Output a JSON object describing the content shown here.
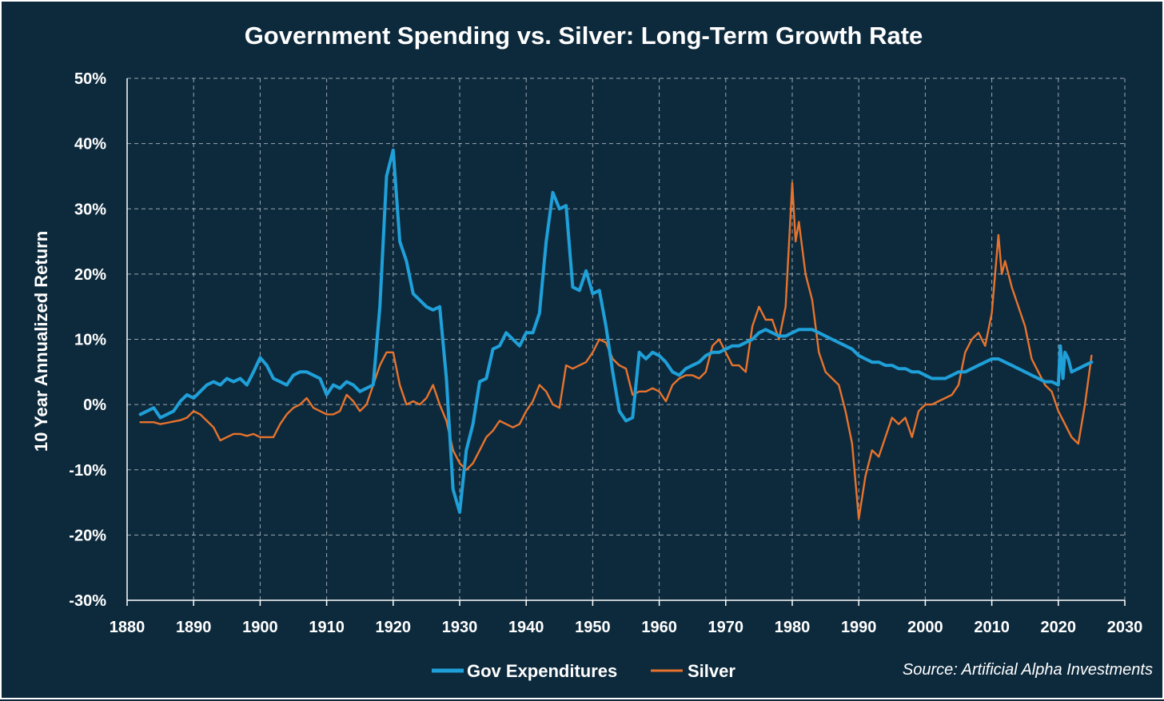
{
  "chart_data": {
    "type": "line",
    "title": "Government Spending vs. Silver: Long-Term Growth Rate",
    "ylabel": "10 Year Annualized Return",
    "xlabel": "",
    "xlim": [
      1880,
      2030
    ],
    "ylim": [
      -30,
      50
    ],
    "x_ticks": [
      1880,
      1890,
      1900,
      1910,
      1920,
      1930,
      1940,
      1950,
      1960,
      1970,
      1980,
      1990,
      2000,
      2010,
      2020,
      2030
    ],
    "x_tick_labels": [
      "1880",
      "1890",
      "1900",
      "1910",
      "1920",
      "1930",
      "1940",
      "1950",
      "1960",
      "1970",
      "1980",
      "1990",
      "2000",
      "2010",
      "2020",
      "2030"
    ],
    "y_ticks": [
      -30,
      -20,
      -10,
      0,
      10,
      20,
      30,
      40,
      50
    ],
    "y_tick_labels": [
      "-30%",
      "-20%",
      "-10%",
      "0%",
      "10%",
      "20%",
      "30%",
      "40%",
      "50%"
    ],
    "grid": true,
    "legend_position": "bottom",
    "source": "Source: Artificial Alpha Investments",
    "series": [
      {
        "name": "Gov Expenditures",
        "color": "#1fa0d9",
        "points": [
          [
            1882,
            -1.5
          ],
          [
            1883,
            -1
          ],
          [
            1884,
            -0.5
          ],
          [
            1885,
            -2
          ],
          [
            1886,
            -1.5
          ],
          [
            1887,
            -1
          ],
          [
            1888,
            0.5
          ],
          [
            1889,
            1.5
          ],
          [
            1890,
            1
          ],
          [
            1891,
            2
          ],
          [
            1892,
            3
          ],
          [
            1893,
            3.5
          ],
          [
            1894,
            3
          ],
          [
            1895,
            4
          ],
          [
            1896,
            3.5
          ],
          [
            1897,
            4
          ],
          [
            1898,
            3
          ],
          [
            1899,
            5
          ],
          [
            1900,
            7.2
          ],
          [
            1901,
            6
          ],
          [
            1902,
            4
          ],
          [
            1903,
            3.5
          ],
          [
            1904,
            3
          ],
          [
            1905,
            4.5
          ],
          [
            1906,
            5
          ],
          [
            1907,
            5
          ],
          [
            1908,
            4.5
          ],
          [
            1909,
            4
          ],
          [
            1910,
            1.5
          ],
          [
            1911,
            3
          ],
          [
            1912,
            2.5
          ],
          [
            1913,
            3.5
          ],
          [
            1914,
            3
          ],
          [
            1915,
            2
          ],
          [
            1916,
            2.5
          ],
          [
            1917,
            3
          ],
          [
            1918,
            15
          ],
          [
            1919,
            35
          ],
          [
            1920,
            39
          ],
          [
            1921,
            25
          ],
          [
            1922,
            22
          ],
          [
            1923,
            17
          ],
          [
            1924,
            16
          ],
          [
            1925,
            15
          ],
          [
            1926,
            14.5
          ],
          [
            1927,
            15
          ],
          [
            1928,
            4
          ],
          [
            1929,
            -13
          ],
          [
            1930,
            -16.5
          ],
          [
            1931,
            -7
          ],
          [
            1932,
            -3
          ],
          [
            1933,
            3.5
          ],
          [
            1934,
            4
          ],
          [
            1935,
            8.5
          ],
          [
            1936,
            9
          ],
          [
            1937,
            11
          ],
          [
            1938,
            10
          ],
          [
            1939,
            9
          ],
          [
            1940,
            11
          ],
          [
            1941,
            11
          ],
          [
            1942,
            14
          ],
          [
            1943,
            25
          ],
          [
            1944,
            32.5
          ],
          [
            1945,
            30
          ],
          [
            1946,
            30.5
          ],
          [
            1947,
            18
          ],
          [
            1948,
            17.5
          ],
          [
            1949,
            20.5
          ],
          [
            1950,
            17
          ],
          [
            1951,
            17.5
          ],
          [
            1952,
            12
          ],
          [
            1953,
            5
          ],
          [
            1954,
            -1
          ],
          [
            1955,
            -2.5
          ],
          [
            1956,
            -2
          ],
          [
            1957,
            8
          ],
          [
            1958,
            7
          ],
          [
            1959,
            8
          ],
          [
            1960,
            7.5
          ],
          [
            1961,
            6.5
          ],
          [
            1962,
            5
          ],
          [
            1963,
            4.5
          ],
          [
            1964,
            5.5
          ],
          [
            1965,
            6
          ],
          [
            1966,
            6.5
          ],
          [
            1967,
            7.5
          ],
          [
            1968,
            8
          ],
          [
            1969,
            8
          ],
          [
            1970,
            8.5
          ],
          [
            1971,
            9
          ],
          [
            1972,
            9
          ],
          [
            1973,
            9.5
          ],
          [
            1974,
            10
          ],
          [
            1975,
            11
          ],
          [
            1976,
            11.5
          ],
          [
            1977,
            11
          ],
          [
            1978,
            10.5
          ],
          [
            1979,
            10.5
          ],
          [
            1980,
            11
          ],
          [
            1981,
            11.5
          ],
          [
            1982,
            11.5
          ],
          [
            1983,
            11.5
          ],
          [
            1984,
            11
          ],
          [
            1985,
            10.5
          ],
          [
            1986,
            10
          ],
          [
            1987,
            9.5
          ],
          [
            1988,
            9
          ],
          [
            1989,
            8.5
          ],
          [
            1990,
            7.5
          ],
          [
            1991,
            7
          ],
          [
            1992,
            6.5
          ],
          [
            1993,
            6.5
          ],
          [
            1994,
            6
          ],
          [
            1995,
            6
          ],
          [
            1996,
            5.5
          ],
          [
            1997,
            5.5
          ],
          [
            1998,
            5
          ],
          [
            1999,
            5
          ],
          [
            2000,
            4.5
          ],
          [
            2001,
            4
          ],
          [
            2002,
            4
          ],
          [
            2003,
            4
          ],
          [
            2004,
            4.5
          ],
          [
            2005,
            5
          ],
          [
            2006,
            5
          ],
          [
            2007,
            5.5
          ],
          [
            2008,
            6
          ],
          [
            2009,
            6.5
          ],
          [
            2010,
            7
          ],
          [
            2011,
            7
          ],
          [
            2012,
            6.5
          ],
          [
            2013,
            6
          ],
          [
            2014,
            5.5
          ],
          [
            2015,
            5
          ],
          [
            2016,
            4.5
          ],
          [
            2017,
            4
          ],
          [
            2018,
            3.5
          ],
          [
            2019,
            3.5
          ],
          [
            2020,
            3
          ],
          [
            2020.3,
            9
          ],
          [
            2020.7,
            4
          ],
          [
            2021,
            8
          ],
          [
            2021.5,
            7
          ],
          [
            2022,
            5
          ],
          [
            2023,
            5.5
          ],
          [
            2024,
            6
          ],
          [
            2025,
            6.5
          ]
        ]
      },
      {
        "name": "Silver",
        "color": "#e8732c",
        "points": [
          [
            1882,
            -2.7
          ],
          [
            1883,
            -2.7
          ],
          [
            1884,
            -2.7
          ],
          [
            1885,
            -3
          ],
          [
            1886,
            -2.8
          ],
          [
            1887,
            -2.6
          ],
          [
            1888,
            -2.4
          ],
          [
            1889,
            -2
          ],
          [
            1890,
            -1
          ],
          [
            1891,
            -1.5
          ],
          [
            1892,
            -2.5
          ],
          [
            1893,
            -3.5
          ],
          [
            1894,
            -5.5
          ],
          [
            1895,
            -5
          ],
          [
            1896,
            -4.5
          ],
          [
            1897,
            -4.5
          ],
          [
            1898,
            -4.8
          ],
          [
            1899,
            -4.5
          ],
          [
            1900,
            -5
          ],
          [
            1901,
            -5
          ],
          [
            1902,
            -5
          ],
          [
            1903,
            -3
          ],
          [
            1904,
            -1.5
          ],
          [
            1905,
            -0.5
          ],
          [
            1906,
            0
          ],
          [
            1907,
            1
          ],
          [
            1908,
            -0.5
          ],
          [
            1909,
            -1
          ],
          [
            1910,
            -1.5
          ],
          [
            1911,
            -1.5
          ],
          [
            1912,
            -1
          ],
          [
            1913,
            1.5
          ],
          [
            1914,
            0.5
          ],
          [
            1915,
            -1
          ],
          [
            1916,
            0
          ],
          [
            1917,
            3
          ],
          [
            1918,
            6
          ],
          [
            1919,
            8
          ],
          [
            1920,
            8
          ],
          [
            1921,
            3
          ],
          [
            1922,
            0
          ],
          [
            1923,
            0.5
          ],
          [
            1924,
            0
          ],
          [
            1925,
            1
          ],
          [
            1926,
            3
          ],
          [
            1927,
            0
          ],
          [
            1928,
            -2.5
          ],
          [
            1929,
            -7
          ],
          [
            1930,
            -9
          ],
          [
            1931,
            -10
          ],
          [
            1932,
            -9
          ],
          [
            1933,
            -7
          ],
          [
            1934,
            -5
          ],
          [
            1935,
            -4
          ],
          [
            1936,
            -2.5
          ],
          [
            1937,
            -3
          ],
          [
            1938,
            -3.5
          ],
          [
            1939,
            -3
          ],
          [
            1940,
            -1
          ],
          [
            1941,
            0.5
          ],
          [
            1942,
            3
          ],
          [
            1943,
            2
          ],
          [
            1944,
            0
          ],
          [
            1945,
            -0.5
          ],
          [
            1946,
            6
          ],
          [
            1947,
            5.5
          ],
          [
            1948,
            6
          ],
          [
            1949,
            6.5
          ],
          [
            1950,
            8
          ],
          [
            1951,
            10
          ],
          [
            1952,
            9.5
          ],
          [
            1953,
            7
          ],
          [
            1954,
            6
          ],
          [
            1955,
            5.5
          ],
          [
            1956,
            1.5
          ],
          [
            1957,
            2
          ],
          [
            1958,
            2
          ],
          [
            1959,
            2.5
          ],
          [
            1960,
            2
          ],
          [
            1961,
            0.5
          ],
          [
            1962,
            3
          ],
          [
            1963,
            4
          ],
          [
            1964,
            4.5
          ],
          [
            1965,
            4.5
          ],
          [
            1966,
            4
          ],
          [
            1967,
            5
          ],
          [
            1968,
            9
          ],
          [
            1969,
            10
          ],
          [
            1970,
            8
          ],
          [
            1971,
            6
          ],
          [
            1972,
            6
          ],
          [
            1973,
            5
          ],
          [
            1974,
            12
          ],
          [
            1975,
            15
          ],
          [
            1976,
            13
          ],
          [
            1977,
            13
          ],
          [
            1978,
            10
          ],
          [
            1979,
            15
          ],
          [
            1980,
            34
          ],
          [
            1980.5,
            25
          ],
          [
            1981,
            28
          ],
          [
            1982,
            20
          ],
          [
            1983,
            16
          ],
          [
            1984,
            8
          ],
          [
            1985,
            5
          ],
          [
            1986,
            4
          ],
          [
            1987,
            3
          ],
          [
            1988,
            -1
          ],
          [
            1989,
            -6
          ],
          [
            1990,
            -17.5
          ],
          [
            1991,
            -11
          ],
          [
            1992,
            -7
          ],
          [
            1993,
            -8
          ],
          [
            1994,
            -5
          ],
          [
            1995,
            -2
          ],
          [
            1996,
            -3
          ],
          [
            1997,
            -2
          ],
          [
            1998,
            -5
          ],
          [
            1999,
            -1
          ],
          [
            2000,
            0
          ],
          [
            2001,
            0
          ],
          [
            2002,
            0.5
          ],
          [
            2003,
            1
          ],
          [
            2004,
            1.5
          ],
          [
            2005,
            3
          ],
          [
            2006,
            8
          ],
          [
            2007,
            10
          ],
          [
            2008,
            11
          ],
          [
            2009,
            9
          ],
          [
            2010,
            14
          ],
          [
            2011,
            26
          ],
          [
            2011.5,
            20
          ],
          [
            2012,
            22
          ],
          [
            2013,
            18
          ],
          [
            2014,
            15
          ],
          [
            2015,
            12
          ],
          [
            2016,
            7
          ],
          [
            2017,
            5
          ],
          [
            2018,
            3
          ],
          [
            2019,
            2
          ],
          [
            2020,
            -1
          ],
          [
            2021,
            -3
          ],
          [
            2022,
            -5
          ],
          [
            2023,
            -6
          ],
          [
            2024,
            0
          ],
          [
            2025,
            7.5
          ]
        ]
      }
    ]
  }
}
